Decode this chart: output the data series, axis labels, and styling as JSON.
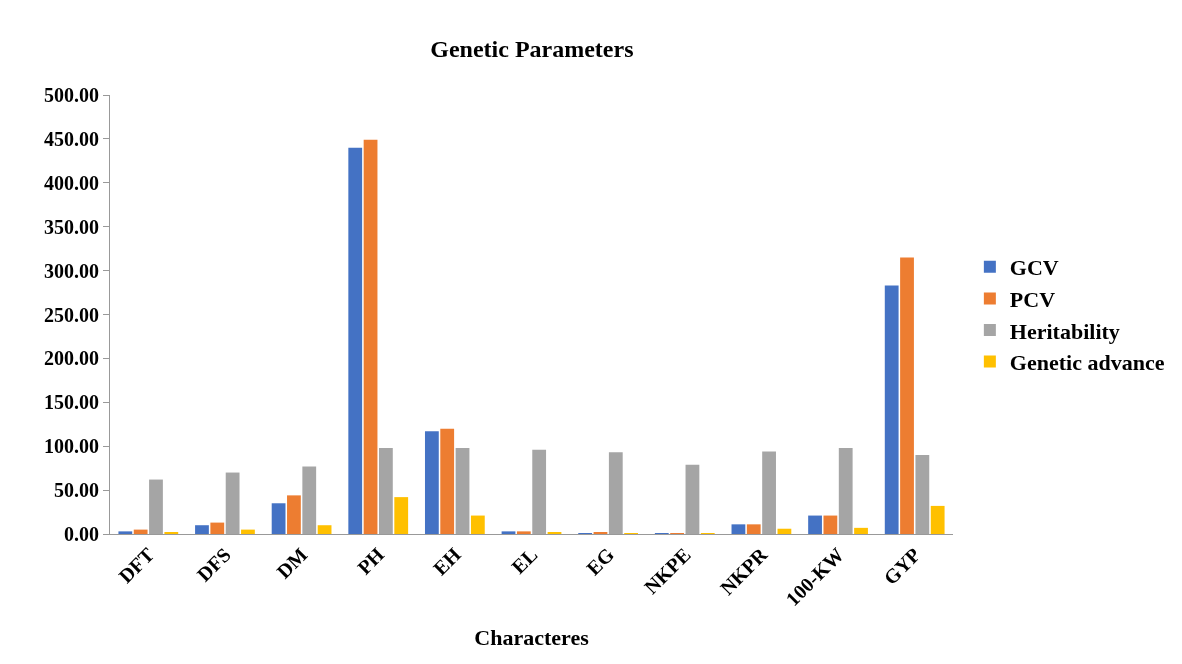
{
  "chart_data": {
    "type": "bar",
    "title": "Genetic Parameters",
    "xlabel": "Characteres",
    "categories": [
      "DFT",
      "DFS",
      "DM",
      "PH",
      "EH",
      "EL",
      "EG",
      "NKPE",
      "NKPR",
      "100-KW",
      "GYP"
    ],
    "series": [
      {
        "name": "GCV",
        "color": "#4472c4",
        "values": [
          3,
          10,
          35,
          440,
          117,
          3,
          1,
          1,
          11,
          21,
          283
        ]
      },
      {
        "name": "PCV",
        "color": "#ed7d31",
        "values": [
          5,
          13,
          44,
          449,
          120,
          3,
          2,
          1,
          11,
          21,
          315
        ]
      },
      {
        "name": "Heritability",
        "color": "#a5a5a5",
        "values": [
          62,
          70,
          77,
          98,
          98,
          96,
          93,
          79,
          94,
          98,
          90
        ]
      },
      {
        "name": "Genetic advance",
        "color": "#ffc000",
        "values": [
          2,
          5,
          10,
          42,
          21,
          2,
          1,
          1,
          6,
          7,
          32
        ]
      }
    ],
    "ylim": [
      0,
      500
    ],
    "yticks": [
      {
        "value": 0,
        "label": "0.00"
      },
      {
        "value": 50,
        "label": "50.00"
      },
      {
        "value": 100,
        "label": "100.00"
      },
      {
        "value": 150,
        "label": "150.00"
      },
      {
        "value": 200,
        "label": "200.00"
      },
      {
        "value": 250,
        "label": "250.00"
      },
      {
        "value": 300,
        "label": "300.00"
      },
      {
        "value": 350,
        "label": "350.00"
      },
      {
        "value": 400,
        "label": "400.00"
      },
      {
        "value": 450,
        "label": "450.00"
      },
      {
        "value": 500,
        "label": "500.00"
      }
    ],
    "grid": false,
    "legend": "right"
  }
}
